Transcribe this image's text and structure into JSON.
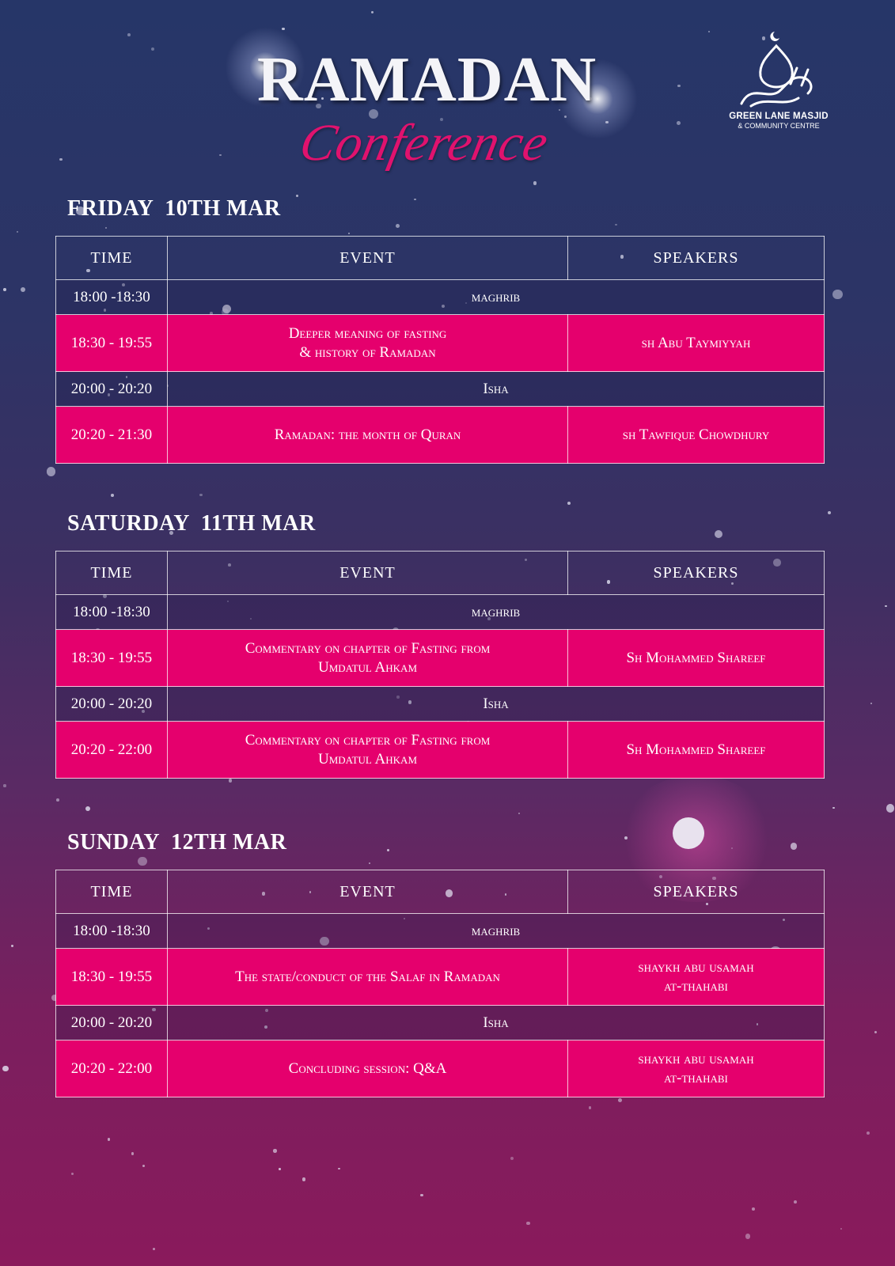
{
  "header": {
    "title": "RAMADAN",
    "subtitle": "Conference"
  },
  "logo": {
    "name": "GREEN LANE MASJID",
    "tagline": "& COMMUNITY CENTRE",
    "icon": "mosque-dome-calligraphy-icon"
  },
  "colors": {
    "accent": "#e5006d",
    "background_top": "#263668",
    "background_bottom": "#8a1a5c"
  },
  "columns": [
    "TIME",
    "EVENT",
    "SPEAKERS"
  ],
  "days": [
    {
      "heading": "FRIDAY  10TH MAR",
      "rows": [
        {
          "time": "18:00 -18:30",
          "event": "maghrib",
          "type": "prayer"
        },
        {
          "time": "18:30 - 19:55",
          "event": "Deeper meaning of fasting\n& history of Ramadan",
          "speaker": "sh Abu Taymiyyah",
          "type": "session"
        },
        {
          "time": "20:00 - 20:20",
          "event": "Isha",
          "type": "prayer"
        },
        {
          "time": "20:20 - 21:30",
          "event": "Ramadan: the month of Quran",
          "speaker": "sh Tawfique Chowdhury",
          "type": "session"
        }
      ]
    },
    {
      "heading": "SATURDAY  11TH MAR",
      "rows": [
        {
          "time": "18:00 -18:30",
          "event": "maghrib",
          "type": "prayer"
        },
        {
          "time": "18:30 - 19:55",
          "event": "Commentary on chapter of Fasting from\nUmdatul Ahkam",
          "speaker": "Sh Mohammed Shareef",
          "type": "session"
        },
        {
          "time": "20:00 - 20:20",
          "event": "Isha",
          "type": "prayer"
        },
        {
          "time": "20:20 - 22:00",
          "event": "Commentary on chapter of Fasting from\nUmdatul Ahkam",
          "speaker": "Sh Mohammed Shareef",
          "type": "session"
        }
      ]
    },
    {
      "heading": "SUNDAY  12TH MAR",
      "rows": [
        {
          "time": "18:00 -18:30",
          "event": "maghrib",
          "type": "prayer"
        },
        {
          "time": "18:30 - 19:55",
          "event": "The state/conduct of the Salaf in Ramadan",
          "speaker": "shaykh abu usamah\nat-thahabi",
          "type": "session"
        },
        {
          "time": "20:00 - 20:20",
          "event": "Isha",
          "type": "prayer"
        },
        {
          "time": "20:20 - 22:00",
          "event": "Concluding session: Q&A",
          "speaker": "shaykh abu usamah\nat-thahabi",
          "type": "session"
        }
      ]
    }
  ]
}
